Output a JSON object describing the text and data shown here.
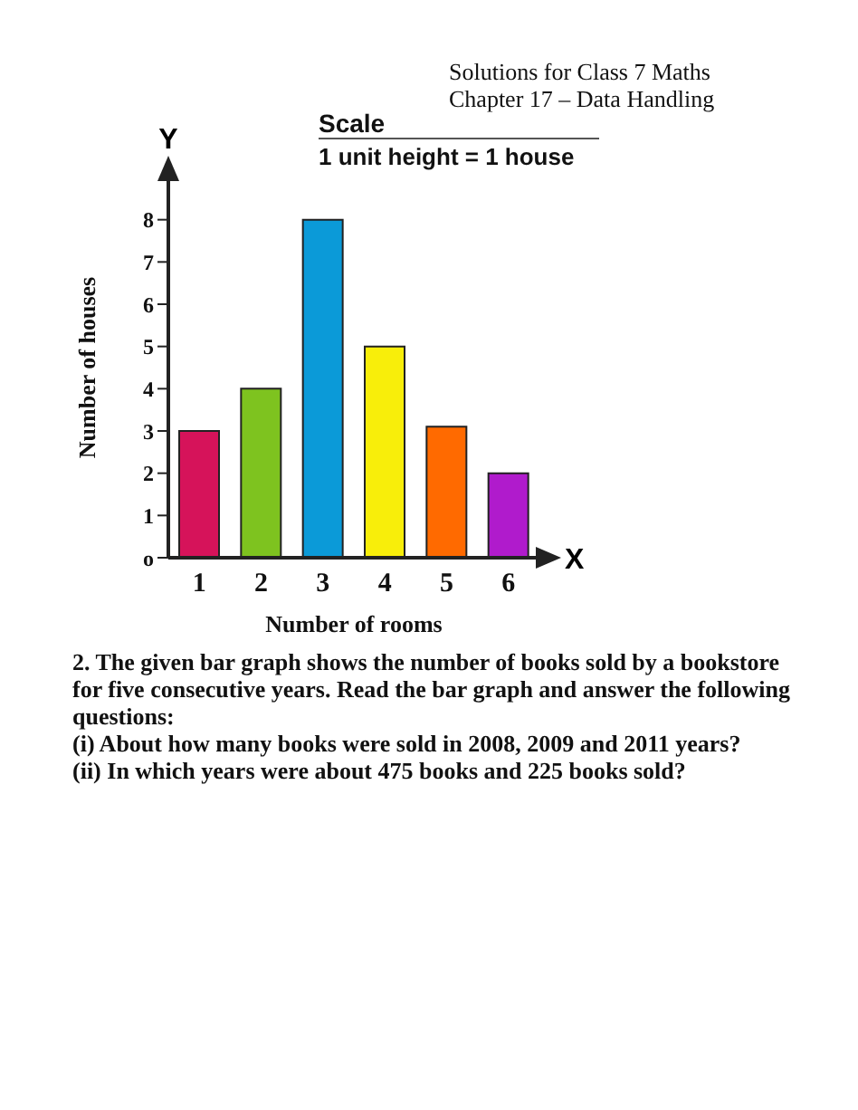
{
  "chart_data": {
    "type": "bar",
    "categories": [
      "1",
      "2",
      "3",
      "4",
      "5",
      "6"
    ],
    "values": [
      3,
      4,
      8,
      5,
      3.1,
      2
    ],
    "colors": [
      "#d6135a",
      "#7ec31f",
      "#0b9ad8",
      "#f8ee0a",
      "#ff6a00",
      "#b01bcc"
    ],
    "xlabel": "Number of rooms",
    "ylabel": "Number of houses",
    "ylim": [
      0,
      9
    ],
    "yticks": [
      {
        "value": 0,
        "label": "o"
      },
      1,
      2,
      3,
      4,
      5,
      6,
      7,
      8
    ],
    "grid": false,
    "legend": false,
    "annotations": [
      "Solutions for Class 7 Maths",
      "Chapter 17 – Data Handling",
      "Scale",
      "1 unit height = 1 house",
      "Y",
      "X",
      "2. The given bar graph shows the number of books sold by a bookstore for five consecutive years. Read the bar graph and answer the following questions:",
      "(i) About how many books were sold in 2008, 2009 and 2011 years?",
      "(ii) In which years were about 475 books and 225 books sold?"
    ]
  }
}
